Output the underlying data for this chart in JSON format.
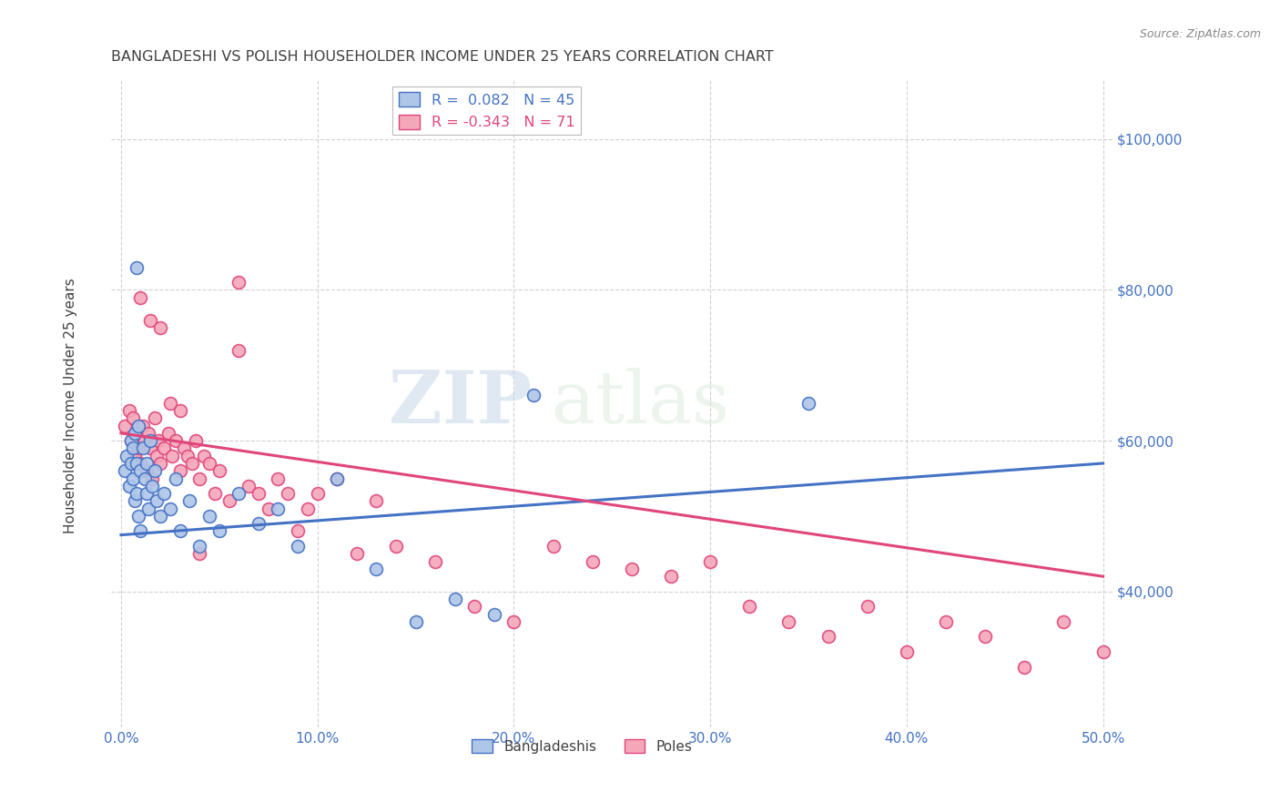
{
  "title": "BANGLADESHI VS POLISH HOUSEHOLDER INCOME UNDER 25 YEARS CORRELATION CHART",
  "source": "Source: ZipAtlas.com",
  "ylabel": "Householder Income Under 25 years",
  "xlabel_ticks": [
    "0.0%",
    "10.0%",
    "20.0%",
    "30.0%",
    "40.0%",
    "50.0%"
  ],
  "xtick_positions": [
    0.0,
    0.1,
    0.2,
    0.3,
    0.4,
    0.5
  ],
  "ytick_labels": [
    "$40,000",
    "$60,000",
    "$80,000",
    "$100,000"
  ],
  "ytick_values": [
    40000,
    60000,
    80000,
    100000
  ],
  "xlim": [
    -0.005,
    0.505
  ],
  "ylim": [
    22000,
    108000
  ],
  "r_bangladeshi": 0.082,
  "n_bangladeshi": 45,
  "r_polish": -0.343,
  "n_polish": 71,
  "color_bangladeshi": "#aec6e8",
  "color_polish": "#f4a7b9",
  "line_color_bangladeshi": "#4472c4",
  "line_color_polish": "#e0457b",
  "watermark_zip": "ZIP",
  "watermark_atlas": "atlas",
  "title_color": "#404040",
  "axis_label_color": "#4472c4",
  "background_color": "#ffffff",
  "grid_color": "#cccccc",
  "bangladeshi_x": [
    0.002,
    0.003,
    0.004,
    0.005,
    0.005,
    0.006,
    0.006,
    0.007,
    0.007,
    0.008,
    0.008,
    0.009,
    0.009,
    0.01,
    0.01,
    0.011,
    0.012,
    0.013,
    0.013,
    0.014,
    0.015,
    0.016,
    0.017,
    0.018,
    0.02,
    0.022,
    0.025,
    0.028,
    0.03,
    0.035,
    0.04,
    0.045,
    0.05,
    0.06,
    0.07,
    0.08,
    0.09,
    0.11,
    0.13,
    0.15,
    0.17,
    0.19,
    0.21,
    0.35,
    0.008
  ],
  "bangladeshi_y": [
    56000,
    58000,
    54000,
    57000,
    60000,
    55000,
    59000,
    52000,
    61000,
    53000,
    57000,
    50000,
    62000,
    56000,
    48000,
    59000,
    55000,
    53000,
    57000,
    51000,
    60000,
    54000,
    56000,
    52000,
    50000,
    53000,
    51000,
    55000,
    48000,
    52000,
    46000,
    50000,
    48000,
    53000,
    49000,
    51000,
    46000,
    55000,
    43000,
    36000,
    39000,
    37000,
    66000,
    65000,
    83000
  ],
  "polish_x": [
    0.002,
    0.004,
    0.005,
    0.006,
    0.007,
    0.008,
    0.009,
    0.01,
    0.011,
    0.012,
    0.013,
    0.014,
    0.015,
    0.016,
    0.017,
    0.018,
    0.019,
    0.02,
    0.022,
    0.024,
    0.026,
    0.028,
    0.03,
    0.032,
    0.034,
    0.036,
    0.038,
    0.04,
    0.042,
    0.045,
    0.048,
    0.05,
    0.055,
    0.06,
    0.065,
    0.07,
    0.075,
    0.08,
    0.085,
    0.09,
    0.095,
    0.1,
    0.11,
    0.12,
    0.13,
    0.14,
    0.16,
    0.18,
    0.2,
    0.22,
    0.24,
    0.26,
    0.28,
    0.3,
    0.32,
    0.34,
    0.36,
    0.38,
    0.4,
    0.42,
    0.44,
    0.46,
    0.48,
    0.5,
    0.01,
    0.015,
    0.02,
    0.025,
    0.03,
    0.04,
    0.06
  ],
  "polish_y": [
    62000,
    64000,
    60000,
    63000,
    58000,
    61000,
    59000,
    57000,
    62000,
    60000,
    56000,
    61000,
    59000,
    55000,
    63000,
    58000,
    60000,
    57000,
    59000,
    61000,
    58000,
    60000,
    56000,
    59000,
    58000,
    57000,
    60000,
    55000,
    58000,
    57000,
    53000,
    56000,
    52000,
    72000,
    54000,
    53000,
    51000,
    55000,
    53000,
    48000,
    51000,
    53000,
    55000,
    45000,
    52000,
    46000,
    44000,
    38000,
    36000,
    46000,
    44000,
    43000,
    42000,
    44000,
    38000,
    36000,
    34000,
    38000,
    32000,
    36000,
    34000,
    30000,
    36000,
    32000,
    79000,
    76000,
    75000,
    65000,
    64000,
    45000,
    81000
  ]
}
